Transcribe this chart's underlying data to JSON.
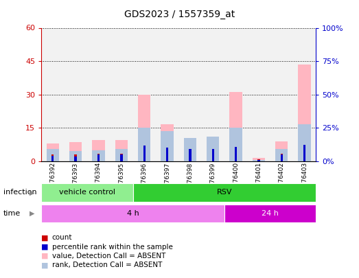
{
  "title": "GDS2023 / 1557359_at",
  "samples": [
    "GSM76392",
    "GSM76393",
    "GSM76394",
    "GSM76395",
    "GSM76396",
    "GSM76397",
    "GSM76398",
    "GSM76399",
    "GSM76400",
    "GSM76401",
    "GSM76402",
    "GSM76403"
  ],
  "value_absent": [
    8.0,
    8.5,
    9.5,
    9.5,
    30.0,
    16.5,
    9.0,
    9.5,
    31.0,
    1.5,
    9.0,
    43.5
  ],
  "rank_absent": [
    5.5,
    4.5,
    5.0,
    5.5,
    15.0,
    13.5,
    10.5,
    11.0,
    15.0,
    0.5,
    5.5,
    16.5
  ],
  "count_val": [
    3.0,
    3.0,
    3.5,
    3.5,
    5.0,
    4.5,
    4.0,
    3.5,
    5.0,
    1.0,
    3.5,
    6.0
  ],
  "rank_val": [
    2.5,
    2.0,
    3.0,
    3.0,
    7.0,
    6.0,
    5.5,
    5.5,
    6.5,
    0.5,
    3.0,
    7.5
  ],
  "ylim_left": [
    0,
    60
  ],
  "ylim_right": [
    0,
    100
  ],
  "yticks_left": [
    0,
    15,
    30,
    45,
    60
  ],
  "yticks_right": [
    0,
    25,
    50,
    75,
    100
  ],
  "ytick_labels_left": [
    "0",
    "15",
    "30",
    "45",
    "60"
  ],
  "ytick_labels_right": [
    "0%",
    "25%",
    "50%",
    "75%",
    "100%"
  ],
  "infection_groups": [
    {
      "label": "vehicle control",
      "start": 0,
      "end": 4,
      "color": "#90ee90"
    },
    {
      "label": "RSV",
      "start": 4,
      "end": 12,
      "color": "#32cd32"
    }
  ],
  "time_groups": [
    {
      "label": "4 h",
      "start": 0,
      "end": 8,
      "color": "#ee82ee"
    },
    {
      "label": "24 h",
      "start": 8,
      "end": 12,
      "color": "#cc00cc"
    }
  ],
  "color_value_absent": "#ffb6c1",
  "color_rank_absent": "#b0c4de",
  "color_count": "#cc0000",
  "color_rank_narrow": "#0000cc",
  "legend_items": [
    {
      "label": "count",
      "color": "#cc0000"
    },
    {
      "label": "percentile rank within the sample",
      "color": "#0000cc"
    },
    {
      "label": "value, Detection Call = ABSENT",
      "color": "#ffb6c1"
    },
    {
      "label": "rank, Detection Call = ABSENT",
      "color": "#b0c4de"
    }
  ],
  "infection_label": "infection",
  "time_label": "time",
  "bg_color": "#dcdcdc",
  "plot_bg": "#ffffff"
}
